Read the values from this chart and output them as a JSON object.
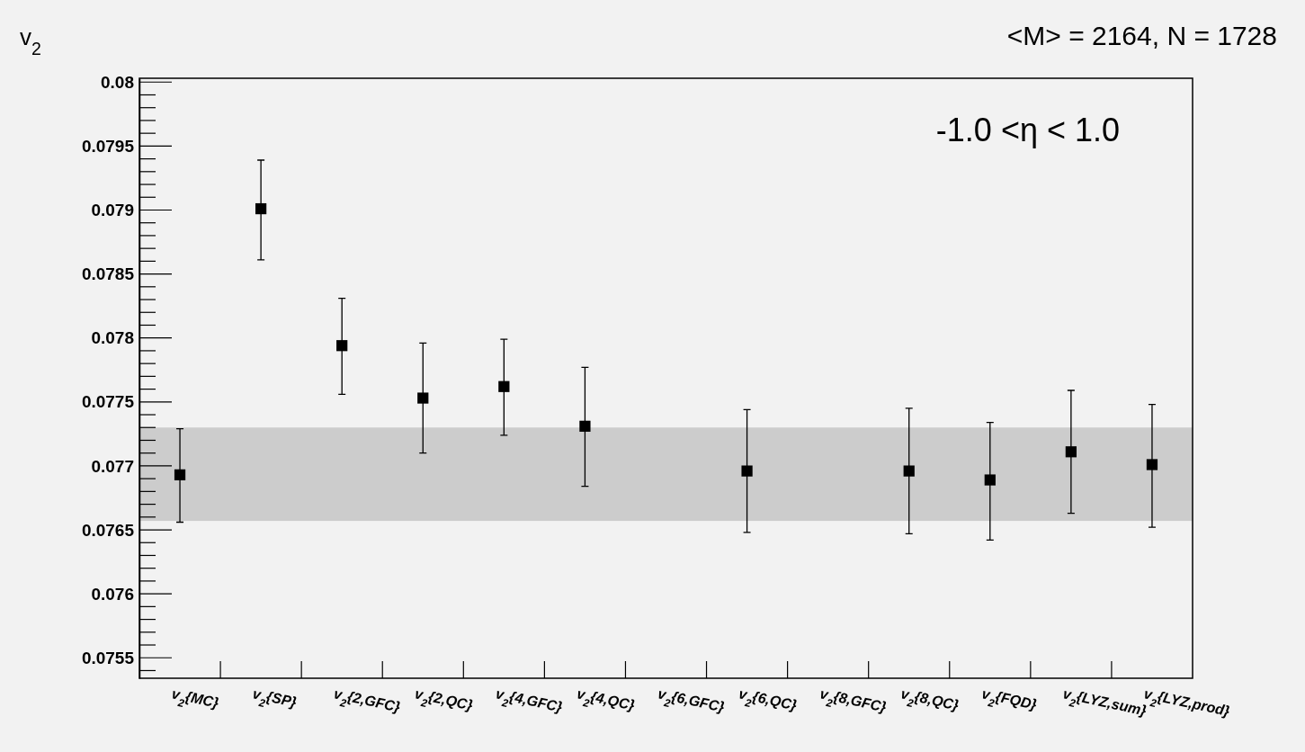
{
  "chart_data": {
    "type": "scatter",
    "ylabel": "v$_{2}$",
    "annotations": [
      "<M> = 2164, N = 1728",
      "-1.0 <η < 1.0"
    ],
    "categories": [
      "v$_{2}${MC}",
      "v$_{2}${SP}",
      "v$_{2}${2,GFC}",
      "v$_{2}${2,QC}",
      "v$_{2}${4,GFC}",
      "v$_{2}${4,QC}",
      "v$_{2}${6,GFC}",
      "v$_{2}${6,QC}",
      "v$_{2}${8,GFC}",
      "v$_{2}${8,QC}",
      "v$_{2}${FQD}",
      "v$_{2}${LYZ,sum}",
      "v$_{2}${LYZ,prod}"
    ],
    "values": [
      0.07693,
      0.07901,
      0.07794,
      0.07753,
      0.07762,
      0.07731,
      null,
      0.07696,
      null,
      0.07696,
      0.07689,
      0.07711,
      0.07701
    ],
    "errors": [
      [
        0.07656,
        0.07729
      ],
      [
        0.07861,
        0.07939
      ],
      [
        0.07756,
        0.07831
      ],
      [
        0.0771,
        0.07796
      ],
      [
        0.07724,
        0.07799
      ],
      [
        0.07684,
        0.07777
      ],
      null,
      [
        0.07648,
        0.07744
      ],
      null,
      [
        0.07647,
        0.07745
      ],
      [
        0.07642,
        0.07734
      ],
      [
        0.07663,
        0.07759
      ],
      [
        0.07652,
        0.07748
      ]
    ],
    "color": "#000000",
    "marker": "square",
    "ylim": [
      0.07534,
      0.08003
    ],
    "yticks": [
      0.0755,
      0.076,
      0.0765,
      0.077,
      0.0775,
      0.078,
      0.0785,
      0.079,
      0.0795,
      0.08
    ],
    "bands": [
      {
        "axis": "y",
        "from": 0.07657,
        "to": 0.0773,
        "color": "#cccccc"
      }
    ],
    "grid": false
  }
}
